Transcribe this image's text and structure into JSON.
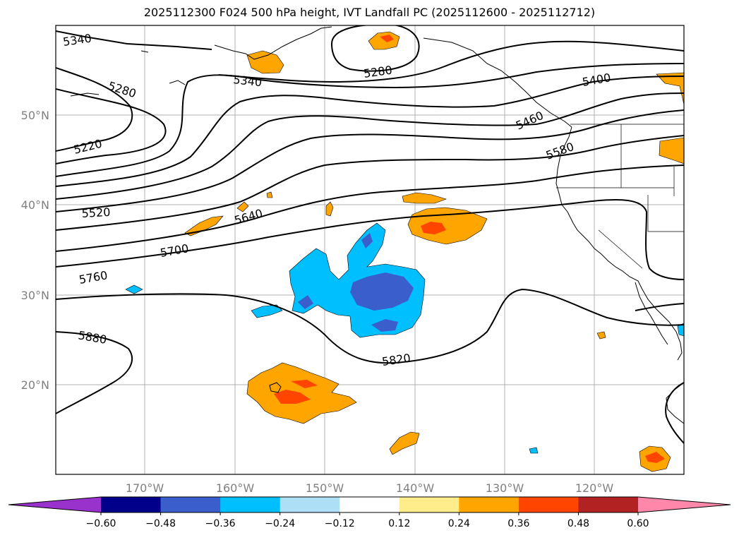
{
  "title": "2025112300 F024 500 hPa height, IVT Landfall PC (2025112600 - 2025112712)",
  "lat_labels": [
    "50°N",
    "40°N",
    "30°N",
    "20°N"
  ],
  "lon_labels": [
    "170°W",
    "160°W",
    "150°W",
    "140°W",
    "130°W",
    "120°W"
  ],
  "contour_labels": {
    "c5340a": "5340",
    "c5340b": "5340",
    "c5280a": "5280",
    "c5280b": "5280",
    "c5220": "5220",
    "c5400": "5400",
    "c5460": "5460",
    "c5580": "5580",
    "c5520": "5520",
    "c5640": "5640",
    "c5700": "5700",
    "c5760": "5760",
    "c5880": "5880",
    "c5820": "5820"
  },
  "colorbar": {
    "ticks": [
      "−0.60",
      "−0.48",
      "−0.36",
      "−0.24",
      "−0.12",
      "0.12",
      "0.24",
      "0.36",
      "0.48",
      "0.60"
    ],
    "colors": [
      "#9932CC",
      "#00008B",
      "#3A5FCD",
      "#00BFFF",
      "#ADDFF7",
      "#FFFFFF",
      "#FFEC8B",
      "#FFA500",
      "#FF4500",
      "#B22222",
      "#FF88AA"
    ]
  },
  "colors": {
    "pos_1": "#FFA500",
    "pos_2": "#FF4500",
    "pos_3": "#B22222",
    "neg_1": "#00BFFF",
    "neg_2": "#3A5FCD"
  }
}
